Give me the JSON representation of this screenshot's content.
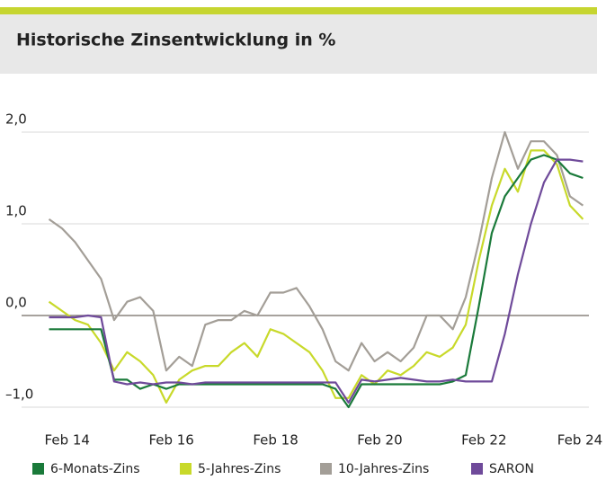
{
  "chart_data": {
    "type": "line",
    "title": "Historische Zinsentwicklung in %",
    "x": [
      2013.75,
      2014.0,
      2014.25,
      2014.5,
      2014.75,
      2015.0,
      2015.25,
      2015.5,
      2015.75,
      2016.0,
      2016.25,
      2016.5,
      2016.75,
      2017.0,
      2017.25,
      2017.5,
      2017.75,
      2018.0,
      2018.25,
      2018.5,
      2018.75,
      2019.0,
      2019.25,
      2019.5,
      2019.75,
      2020.0,
      2020.25,
      2020.5,
      2020.75,
      2021.0,
      2021.25,
      2021.5,
      2021.75,
      2022.0,
      2022.25,
      2022.5,
      2022.75,
      2023.0,
      2023.25,
      2023.5,
      2023.75,
      2024.0
    ],
    "series": [
      {
        "name": "6-Monats-Zins",
        "color": "#1a7a3a",
        "values": [
          -0.15,
          -0.15,
          -0.15,
          -0.15,
          -0.15,
          -0.7,
          -0.7,
          -0.8,
          -0.75,
          -0.8,
          -0.75,
          -0.75,
          -0.75,
          -0.75,
          -0.75,
          -0.75,
          -0.75,
          -0.75,
          -0.75,
          -0.75,
          -0.75,
          -0.75,
          -0.8,
          -1.0,
          -0.75,
          -0.75,
          -0.75,
          -0.75,
          -0.75,
          -0.75,
          -0.75,
          -0.72,
          -0.65,
          0.1,
          0.9,
          1.3,
          1.5,
          1.7,
          1.75,
          1.7,
          1.55,
          1.5
        ]
      },
      {
        "name": "5-Jahres-Zins",
        "color": "#c8d92a",
        "values": [
          0.15,
          0.05,
          -0.05,
          -0.1,
          -0.3,
          -0.6,
          -0.4,
          -0.5,
          -0.65,
          -0.95,
          -0.7,
          -0.6,
          -0.55,
          -0.55,
          -0.4,
          -0.3,
          -0.45,
          -0.15,
          -0.2,
          -0.3,
          -0.4,
          -0.6,
          -0.9,
          -0.9,
          -0.65,
          -0.75,
          -0.6,
          -0.65,
          -0.55,
          -0.4,
          -0.45,
          -0.35,
          -0.1,
          0.6,
          1.2,
          1.6,
          1.35,
          1.8,
          1.8,
          1.65,
          1.2,
          1.05
        ]
      },
      {
        "name": "10-Jahres-Zins",
        "color": "#a39e97",
        "values": [
          1.05,
          0.95,
          0.8,
          0.6,
          0.4,
          -0.05,
          0.15,
          0.2,
          0.05,
          -0.6,
          -0.45,
          -0.55,
          -0.1,
          -0.05,
          -0.05,
          0.05,
          0.0,
          0.25,
          0.25,
          0.3,
          0.1,
          -0.15,
          -0.5,
          -0.6,
          -0.3,
          -0.5,
          -0.4,
          -0.5,
          -0.35,
          0.0,
          0.0,
          -0.15,
          0.2,
          0.8,
          1.5,
          2.0,
          1.6,
          1.9,
          1.9,
          1.75,
          1.3,
          1.2
        ]
      },
      {
        "name": "SARON",
        "color": "#6f4a9a",
        "values": [
          -0.02,
          -0.02,
          -0.02,
          0.0,
          -0.02,
          -0.72,
          -0.75,
          -0.73,
          -0.75,
          -0.73,
          -0.73,
          -0.75,
          -0.73,
          -0.73,
          -0.73,
          -0.73,
          -0.73,
          -0.73,
          -0.73,
          -0.73,
          -0.73,
          -0.73,
          -0.73,
          -0.95,
          -0.7,
          -0.72,
          -0.7,
          -0.68,
          -0.7,
          -0.72,
          -0.72,
          -0.7,
          -0.72,
          -0.72,
          -0.72,
          -0.2,
          0.45,
          1.0,
          1.45,
          1.7,
          1.7,
          1.68
        ]
      }
    ],
    "xlim": [
      2013.5,
      2024.2
    ],
    "xticks": [
      {
        "value": 2014.1,
        "label": "Feb 14"
      },
      {
        "value": 2016.1,
        "label": "Feb 16"
      },
      {
        "value": 2018.1,
        "label": "Feb 18"
      },
      {
        "value": 2020.1,
        "label": "Feb 20"
      },
      {
        "value": 2022.1,
        "label": "Feb 22"
      },
      {
        "value": 2024.1,
        "label": "Feb 24"
      }
    ],
    "ylim": [
      -1.1,
      2.1
    ],
    "yticks": [
      {
        "value": -1,
        "label": "–1,0"
      },
      {
        "value": 0,
        "label": "0,0"
      },
      {
        "value": 1,
        "label": "1,0"
      },
      {
        "value": 2,
        "label": "2,0"
      }
    ],
    "grid": true
  }
}
